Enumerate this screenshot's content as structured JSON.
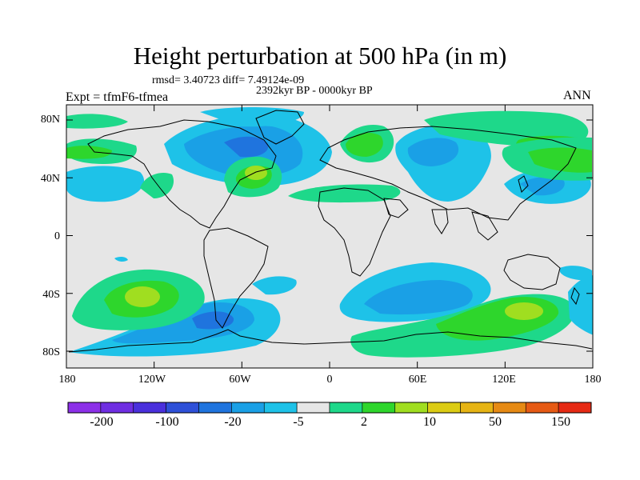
{
  "title": "Height perturbation at 500 hPa (in m)",
  "stats": "rmsd= 3.40723 diff= 7.49124e-09",
  "period": "2392kyr BP - 0000kyr BP",
  "experiment": "Expt = tfmF6-tfmea",
  "season": "ANN",
  "lat_axis": [
    "80N",
    "40N",
    "0",
    "40S",
    "80S"
  ],
  "lon_axis": [
    "180",
    "120W",
    "60W",
    "0",
    "60E",
    "120E",
    "180"
  ],
  "colorbar": {
    "colors": [
      "#8c30e8",
      "#6f2ee2",
      "#4a30dc",
      "#2e50d8",
      "#1f74de",
      "#1aa0e6",
      "#1ec2e8",
      "#e6e6e6",
      "#1ed88a",
      "#2ed62c",
      "#a0de20",
      "#dccc14",
      "#e6b414",
      "#e68a14",
      "#e65a14",
      "#e62a14"
    ],
    "labels": [
      "-200",
      "-100",
      "-20",
      "-5",
      "2",
      "10",
      "50",
      "150"
    ]
  },
  "field_colors": {
    "background": "#e6e6e6",
    "cyan": "#1ec2e8",
    "lightblue": "#1aa0e6",
    "blue": "#1f74de",
    "green": "#1ed88a",
    "darkgreen": "#2ed62c",
    "yellowgreen": "#a0de20",
    "land_line": "#000000"
  }
}
